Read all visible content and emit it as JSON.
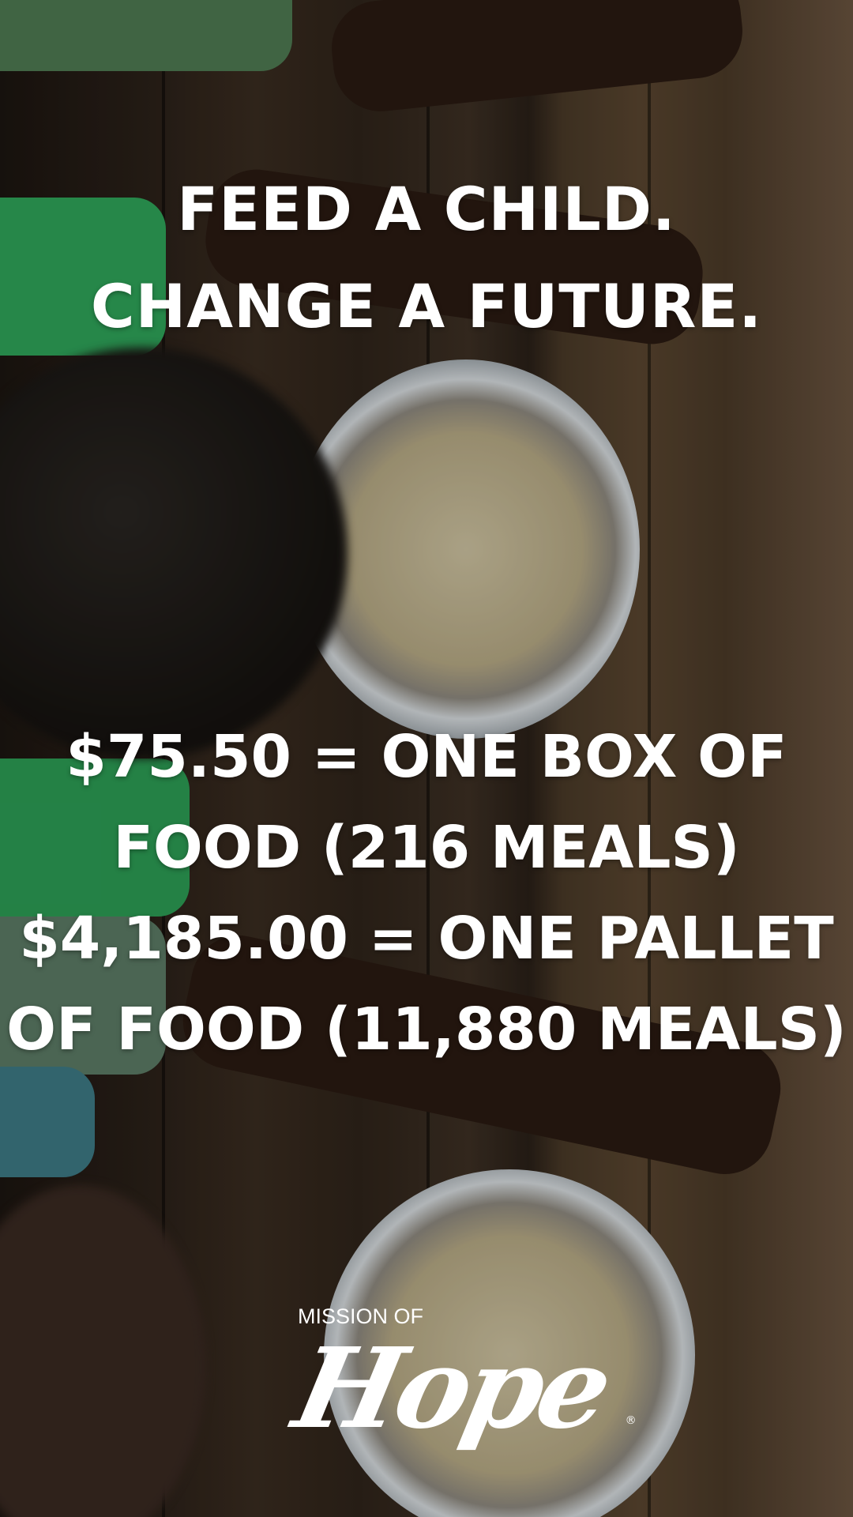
{
  "headline": {
    "line1": "FEED A CHILD.",
    "line2": "CHANGE A FUTURE."
  },
  "pricing": {
    "line1": "$75.50 = ONE BOX OF",
    "line2": "FOOD (216 MEALS)",
    "line3": "$4,185.00 = ONE PALLET",
    "line4": "OF FOOD (11,880 MEALS)"
  },
  "logo": {
    "top": "MISSION OF",
    "wordmark": "Hope",
    "registered": "®"
  },
  "colors": {
    "text": "#ffffff",
    "wood": "#3a2c20",
    "sleeve_green": "#2fa55a"
  }
}
